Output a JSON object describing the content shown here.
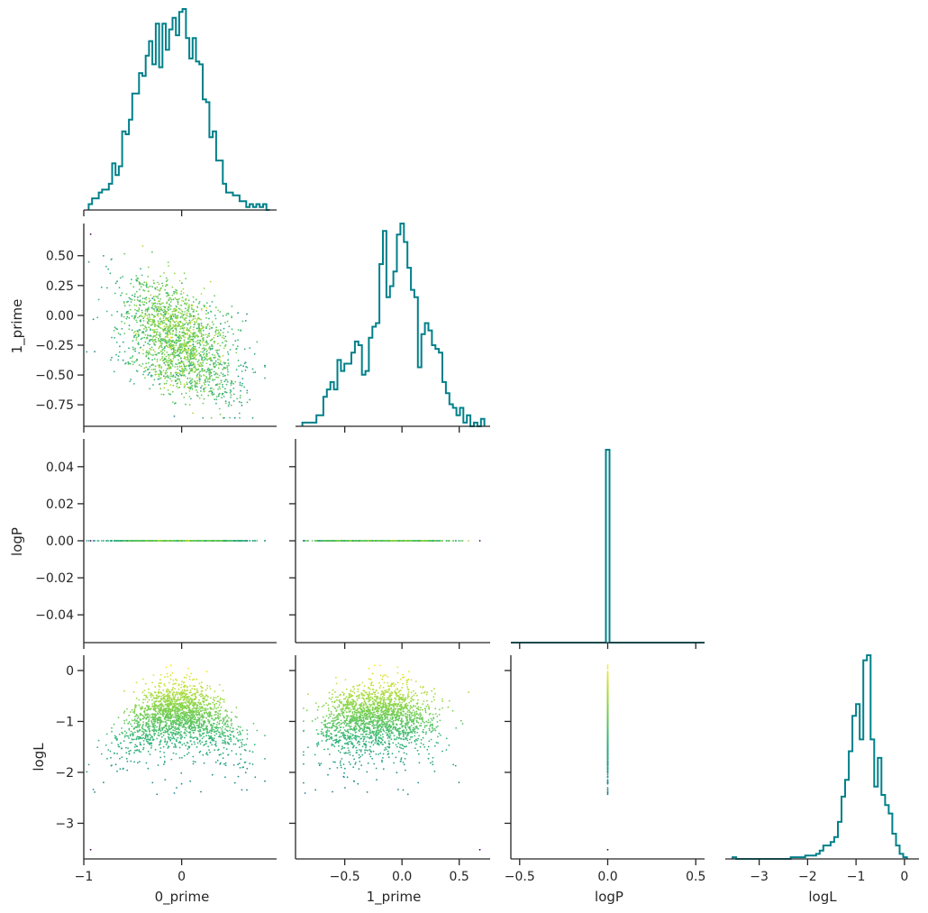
{
  "chart_data": {
    "type": "corner",
    "colors": {
      "histogram": "#00808a",
      "axis": "#262626",
      "colormap": [
        "#440154",
        "#31688e",
        "#21918c",
        "#35b779",
        "#90d743",
        "#fde725"
      ]
    },
    "variables": [
      "0_prime",
      "1_prime",
      "logP",
      "logL"
    ],
    "axis_ranges": {
      "0_prime": [
        -1.0,
        0.97
      ],
      "1_prime": [
        -0.93,
        0.77
      ],
      "logP": [
        -0.55,
        0.55
      ],
      "logL": [
        -3.7,
        0.3
      ]
    },
    "ticks": {
      "0_prime": {
        "values": [
          -1,
          0
        ],
        "labels": [
          "−1",
          "0"
        ]
      },
      "1_prime": {
        "values": [
          -0.75,
          -0.5,
          -0.25,
          0.0,
          0.25,
          0.5
        ],
        "labels": [
          "−0.75",
          "−0.50",
          "−0.25",
          "0.00",
          "0.25",
          "0.50"
        ]
      },
      "1_prime_x": {
        "values": [
          -0.5,
          0.0,
          0.5
        ],
        "labels": [
          "−0.5",
          "0.0",
          "0.5"
        ]
      },
      "logP_x": {
        "values": [
          -0.5,
          0.0,
          0.5
        ],
        "labels": [
          "−0.5",
          "0.0",
          "0.5"
        ]
      },
      "logP_y": {
        "values": [
          -0.04,
          -0.02,
          0.0,
          0.02,
          0.04
        ],
        "labels": [
          "−0.04",
          "−0.02",
          "0.00",
          "0.02",
          "0.04"
        ]
      },
      "logL": {
        "values": [
          -3,
          -2,
          -1,
          0
        ],
        "labels": [
          "−3",
          "−2",
          "−1",
          "0"
        ]
      }
    },
    "logP_y_range": [
      -0.055,
      0.055
    ],
    "histograms": {
      "0_prime": {
        "bins": [
          -0.95,
          0.9
        ],
        "counts": [
          2,
          4,
          4,
          6,
          7,
          7,
          9,
          16,
          12,
          15,
          27,
          26,
          31,
          40,
          40,
          47,
          46,
          53,
          58,
          50,
          64,
          49,
          64,
          55,
          62,
          66,
          60,
          68,
          69,
          59,
          52,
          59,
          51,
          50,
          38,
          37,
          25,
          27,
          17,
          17,
          9,
          6,
          6,
          5,
          5,
          3,
          3,
          1,
          2,
          1,
          2,
          1,
          2,
          0
        ]
      },
      "1_prime": {
        "bins": [
          -0.87,
          0.72
        ],
        "counts": [
          1,
          1,
          1,
          1,
          3,
          3,
          8,
          10,
          12,
          10,
          18,
          15,
          17,
          17,
          20,
          23,
          22,
          14,
          15,
          24,
          27,
          28,
          44,
          53,
          35,
          38,
          42,
          52,
          55,
          50,
          43,
          37,
          35,
          16,
          25,
          28,
          26,
          22,
          21,
          20,
          12,
          9,
          6,
          5,
          3,
          5,
          1,
          3,
          0,
          1,
          0,
          2
        ]
      },
      "logP": {
        "value": 0.0,
        "count": 1
      },
      "logL": {
        "bins": [
          -3.55,
          0.05
        ],
        "counts": [
          1,
          0,
          0,
          0,
          0,
          0,
          0,
          0,
          0,
          0,
          0,
          0,
          0,
          0,
          0,
          0,
          1,
          1,
          1,
          1,
          2,
          2,
          2,
          3,
          5,
          8,
          8,
          10,
          13,
          22,
          37,
          47,
          64,
          85,
          92,
          71,
          118,
          121,
          71,
          43,
          60,
          38,
          32,
          27,
          15,
          8,
          3,
          1
        ]
      }
    },
    "sample_summary": {
      "count": 1900,
      "outlier": {
        "0_prime": -0.93,
        "1_prime": 0.68,
        "logP": 0.0,
        "logL": -3.52
      },
      "logL_color_range": [
        -3.52,
        0.1
      ]
    }
  }
}
